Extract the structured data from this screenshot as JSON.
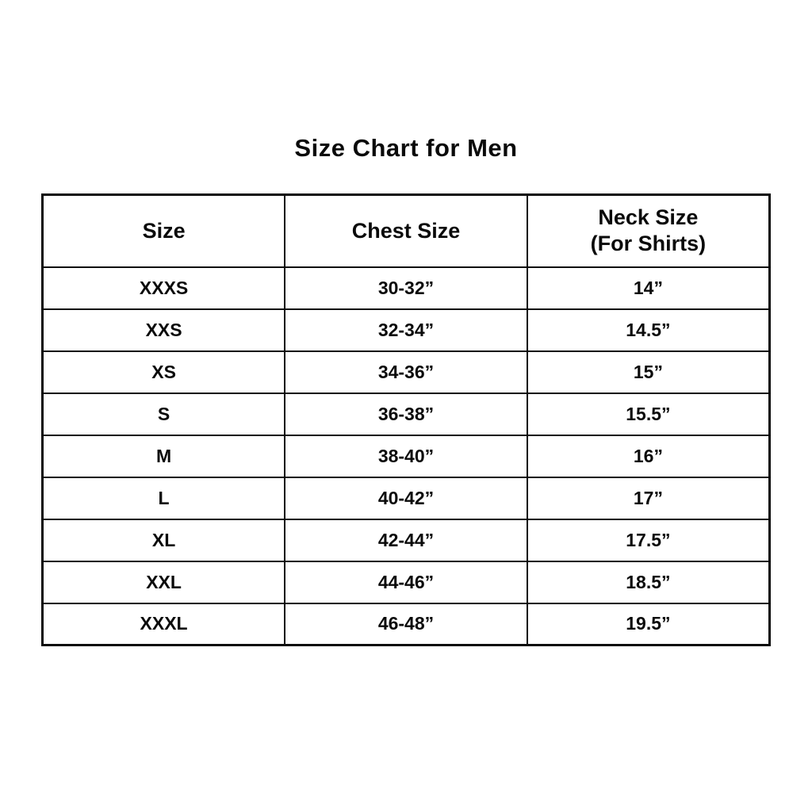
{
  "title": "Size Chart for Men",
  "table": {
    "columns": [
      {
        "label": "Size",
        "sublabel": ""
      },
      {
        "label": "Chest Size",
        "sublabel": ""
      },
      {
        "label": "Neck Size",
        "sublabel": "(For Shirts)"
      }
    ]
  },
  "chart_data": {
    "type": "table",
    "title": "Size Chart for Men",
    "columns": [
      "Size",
      "Chest Size",
      "Neck Size (For Shirts)"
    ],
    "rows": [
      [
        "XXXS",
        "30-32”",
        "14”"
      ],
      [
        "XXS",
        "32-34”",
        "14.5”"
      ],
      [
        "XS",
        "34-36”",
        "15”"
      ],
      [
        "S",
        "36-38”",
        "15.5”"
      ],
      [
        "M",
        "38-40”",
        "16”"
      ],
      [
        "L",
        "40-42”",
        "17”"
      ],
      [
        "XL",
        "42-44”",
        "17.5”"
      ],
      [
        "XXL",
        "44-46”",
        "18.5”"
      ],
      [
        "XXXL",
        "46-48”",
        "19.5”"
      ]
    ]
  }
}
